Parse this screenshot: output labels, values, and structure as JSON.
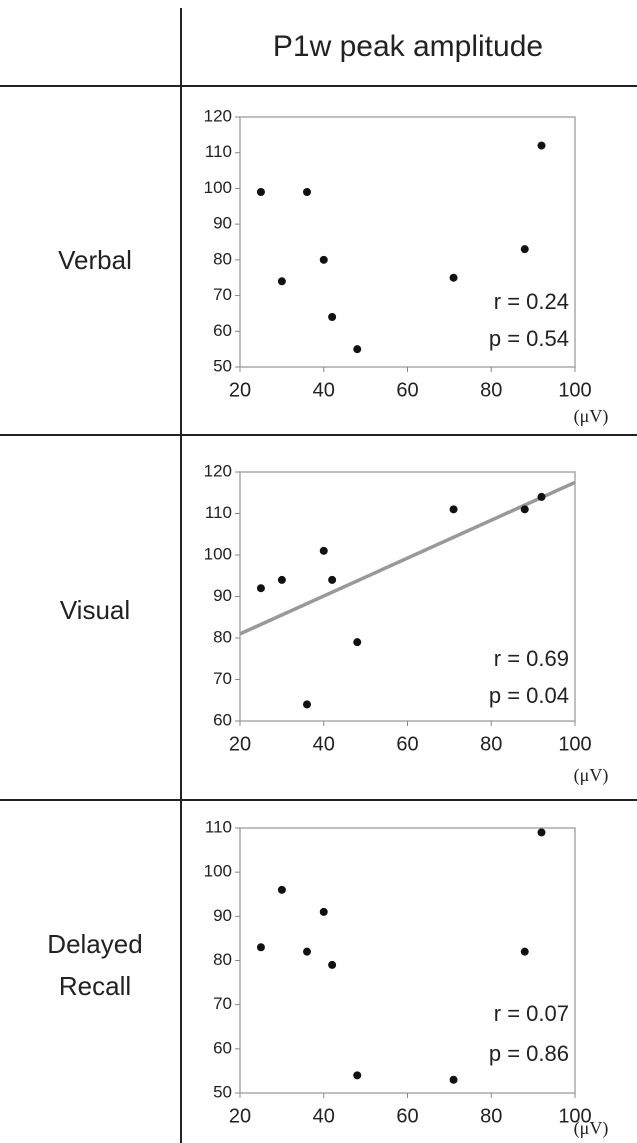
{
  "header": "P1w peak amplitude",
  "chart_data": [
    {
      "type": "scatter",
      "ylabel": "Verbal",
      "xlabel": "(μV)",
      "x": [
        25,
        30,
        36,
        40,
        42,
        48,
        71,
        88,
        92
      ],
      "series": [
        {
          "color": "#111111",
          "values": [
            99,
            74,
            99,
            80,
            64,
            55,
            75,
            83,
            112
          ]
        }
      ],
      "xlim": [
        20,
        100
      ],
      "xticks": [
        20,
        40,
        60,
        80,
        100
      ],
      "ylim": [
        50,
        120
      ],
      "yticks": [
        50,
        60,
        70,
        80,
        90,
        100,
        110,
        120
      ],
      "annotations": [
        "r = 0.24",
        "p = 0.54"
      ]
    },
    {
      "type": "scatter",
      "ylabel": "Visual",
      "xlabel": "(μV)",
      "x": [
        25,
        30,
        36,
        40,
        42,
        48,
        71,
        88,
        92
      ],
      "series": [
        {
          "color": "#111111",
          "values": [
            92,
            94,
            64,
            101,
            94,
            79,
            111,
            111,
            114
          ]
        }
      ],
      "trendline": {
        "color": "#999999",
        "x": [
          20,
          100
        ],
        "y": [
          81,
          117.5
        ]
      },
      "xlim": [
        20,
        100
      ],
      "xticks": [
        20,
        40,
        60,
        80,
        100
      ],
      "ylim": [
        60,
        120
      ],
      "yticks": [
        60,
        70,
        80,
        90,
        100,
        110,
        120
      ],
      "annotations": [
        "r = 0.69",
        "p = 0.04"
      ]
    },
    {
      "type": "scatter",
      "ylabel": "Delayed Recall",
      "xlabel": "(μV)",
      "x": [
        25,
        30,
        36,
        40,
        42,
        48,
        71,
        88,
        92
      ],
      "series": [
        {
          "color": "#111111",
          "values": [
            83,
            96,
            82,
            91,
            79,
            54,
            53,
            82,
            109
          ]
        }
      ],
      "xlim": [
        20,
        100
      ],
      "xticks": [
        20,
        40,
        60,
        80,
        100
      ],
      "ylim": [
        50,
        110
      ],
      "yticks": [
        50,
        60,
        70,
        80,
        90,
        100,
        110
      ],
      "annotations": [
        "r = 0.07",
        "p = 0.86"
      ]
    }
  ]
}
